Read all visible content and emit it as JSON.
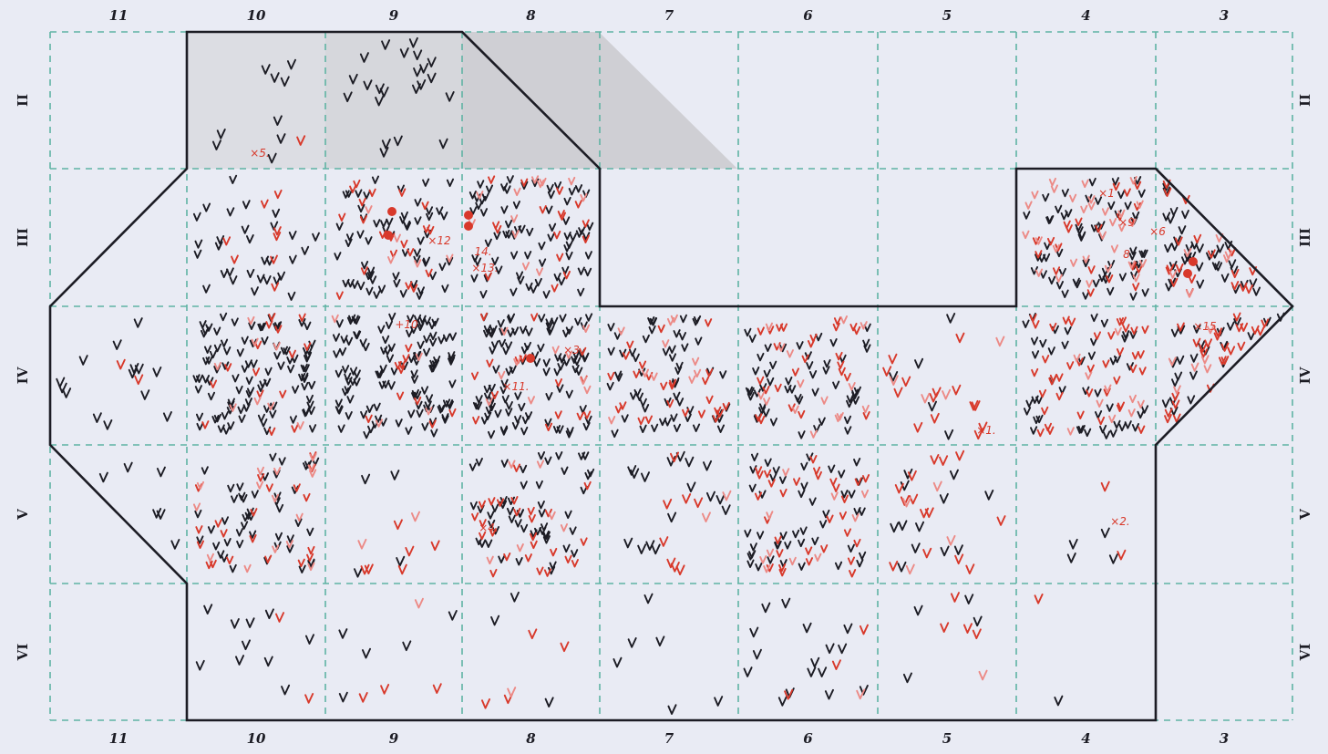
{
  "column_labels": [
    "11",
    "10",
    "9",
    "8",
    "7",
    "6",
    "5",
    "4",
    "3"
  ],
  "row_labels": [
    "II",
    "III",
    "IV",
    "V",
    "VI"
  ],
  "colors": {
    "paper": "#e9ebf4",
    "grid": "#5fb3a3",
    "outline": "#1c1c24",
    "black_mark": "#1c1c24",
    "red_mark": "#d8392b",
    "pink_mark": "#ec8a86"
  },
  "mark_symbol": "v",
  "cells": [
    {
      "row": "II",
      "col": "10",
      "black": 9,
      "red": 1,
      "pink": 0,
      "fill": "#dcdde3"
    },
    {
      "row": "II",
      "col": "9",
      "black": 22,
      "red": 0,
      "pink": 0,
      "fill": "#d6d7dc"
    },
    {
      "row": "II",
      "col": "8",
      "black": 0,
      "red": 0,
      "pink": 0,
      "fill": "#cfcfd4"
    },
    {
      "row": "III",
      "col": "10",
      "black": 30,
      "red": 8,
      "pink": 0
    },
    {
      "row": "III",
      "col": "9",
      "black": 60,
      "red": 20,
      "pink": 5
    },
    {
      "row": "III",
      "col": "8",
      "black": 70,
      "red": 16,
      "pink": 12
    },
    {
      "row": "III",
      "col": "4",
      "black": 60,
      "red": 20,
      "pink": 30
    },
    {
      "row": "III",
      "col": "3",
      "black": 35,
      "red": 18,
      "pink": 6
    },
    {
      "row": "IV",
      "col": "11",
      "black": 14,
      "red": 2,
      "pink": 0
    },
    {
      "row": "IV",
      "col": "10",
      "black": 95,
      "red": 15,
      "pink": 8
    },
    {
      "row": "IV",
      "col": "9",
      "black": 110,
      "red": 10,
      "pink": 4
    },
    {
      "row": "IV",
      "col": "8",
      "black": 95,
      "red": 15,
      "pink": 10
    },
    {
      "row": "IV",
      "col": "7",
      "black": 55,
      "red": 25,
      "pink": 10
    },
    {
      "row": "IV",
      "col": "6",
      "black": 50,
      "red": 25,
      "pink": 15
    },
    {
      "row": "IV",
      "col": "5",
      "black": 5,
      "red": 14,
      "pink": 4
    },
    {
      "row": "IV",
      "col": "4",
      "black": 45,
      "red": 40,
      "pink": 10
    },
    {
      "row": "IV",
      "col": "3",
      "black": 24,
      "red": 24,
      "pink": 6
    },
    {
      "row": "V",
      "col": "11",
      "black": 6,
      "red": 0,
      "pink": 0
    },
    {
      "row": "V",
      "col": "10",
      "black": 45,
      "red": 20,
      "pink": 15
    },
    {
      "row": "V",
      "col": "9",
      "black": 4,
      "red": 6,
      "pink": 2
    },
    {
      "row": "V",
      "col": "8",
      "black": 50,
      "red": 25,
      "pink": 6
    },
    {
      "row": "V",
      "col": "7",
      "black": 16,
      "red": 8,
      "pink": 2
    },
    {
      "row": "V",
      "col": "6",
      "black": 45,
      "red": 30,
      "pink": 10
    },
    {
      "row": "V",
      "col": "5",
      "black": 12,
      "red": 14,
      "pink": 4
    },
    {
      "row": "V",
      "col": "4",
      "black": 4,
      "red": 2,
      "pink": 0
    },
    {
      "row": "VI",
      "col": "10",
      "black": 10,
      "red": 2,
      "pink": 0
    },
    {
      "row": "VI",
      "col": "9",
      "black": 5,
      "red": 3,
      "pink": 1
    },
    {
      "row": "VI",
      "col": "8",
      "black": 3,
      "red": 4,
      "pink": 1
    },
    {
      "row": "VI",
      "col": "7",
      "black": 6,
      "red": 0,
      "pink": 0
    },
    {
      "row": "VI",
      "col": "6",
      "black": 16,
      "red": 3,
      "pink": 1
    },
    {
      "row": "VI",
      "col": "5",
      "black": 4,
      "red": 4,
      "pink": 1
    },
    {
      "row": "VI",
      "col": "4",
      "black": 1,
      "red": 1,
      "pink": 0
    }
  ],
  "annotations": [
    {
      "text": "×5.",
      "row": "II",
      "col": "10"
    },
    {
      "text": "×12",
      "row": "III",
      "col": "9"
    },
    {
      "text": "14.",
      "row": "III",
      "col": "8"
    },
    {
      "text": "×13.",
      "row": "III",
      "col": "8"
    },
    {
      "text": "×1",
      "row": "III",
      "col": "4"
    },
    {
      "text": "×9",
      "row": "III",
      "col": "4"
    },
    {
      "text": "×6",
      "row": "III",
      "col": "3"
    },
    {
      "text": "8",
      "row": "III",
      "col": "4"
    },
    {
      "text": "+10",
      "row": "IV",
      "col": "9"
    },
    {
      "text": "×3",
      "row": "IV",
      "col": "8"
    },
    {
      "text": "×11.",
      "row": "IV",
      "col": "8"
    },
    {
      "text": "×1.",
      "row": "IV",
      "col": "5"
    },
    {
      "text": "×15",
      "row": "IV",
      "col": "3"
    },
    {
      "text": "×4.",
      "row": "V",
      "col": "8"
    },
    {
      "text": "×2.",
      "row": "V",
      "col": "4"
    }
  ]
}
